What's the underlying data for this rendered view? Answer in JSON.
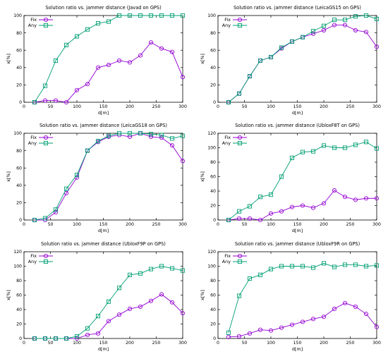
{
  "chart_data": [
    {
      "type": "line",
      "title": "Solution ratio vs. jammer distance (Javad on GPS)",
      "xlabel": "d[m]",
      "ylabel": "x[%]",
      "xlim": [
        0,
        300
      ],
      "ylim": [
        0,
        100
      ],
      "xticks": [
        0,
        50,
        100,
        150,
        200,
        250,
        300
      ],
      "yticks": [
        0,
        20,
        40,
        60,
        80,
        100
      ],
      "grid": false,
      "legend": "top-left",
      "x": [
        20,
        40,
        60,
        80,
        100,
        120,
        140,
        160,
        180,
        200,
        220,
        240,
        260,
        280,
        300
      ],
      "series": [
        {
          "name": "Fix",
          "color": "#9400d3",
          "marker": "circle",
          "values": [
            0,
            2,
            2,
            0,
            14,
            21,
            40,
            43,
            48,
            46,
            54,
            69,
            62,
            58,
            29
          ]
        },
        {
          "name": "Any",
          "color": "#009e73",
          "marker": "square",
          "values": [
            0,
            19,
            48,
            66,
            76,
            84,
            91,
            93,
            100,
            100,
            100,
            100,
            100,
            100,
            100
          ]
        }
      ]
    },
    {
      "type": "line",
      "title": "Solution ratio vs. jammer distance (LeicaGS15 on GPS)",
      "xlabel": "d[m]",
      "ylabel": "x[%]",
      "xlim": [
        0,
        300
      ],
      "ylim": [
        0,
        100
      ],
      "xticks": [
        0,
        50,
        100,
        150,
        200,
        250,
        300
      ],
      "yticks": [
        0,
        20,
        40,
        60,
        80,
        100
      ],
      "grid": false,
      "legend": "top-left",
      "x": [
        20,
        40,
        60,
        80,
        100,
        120,
        140,
        160,
        180,
        200,
        220,
        240,
        260,
        280,
        300
      ],
      "series": [
        {
          "name": "Fix",
          "color": "#9400d3",
          "marker": "circle",
          "values": [
            0,
            10,
            30,
            48,
            52,
            62,
            70,
            75,
            79,
            83,
            89,
            89,
            83,
            81,
            64
          ]
        },
        {
          "name": "Any",
          "color": "#009e73",
          "marker": "square",
          "values": [
            0,
            10,
            30,
            48,
            52,
            63,
            70,
            75,
            82,
            88,
            95,
            95,
            99,
            100,
            96
          ]
        }
      ]
    },
    {
      "type": "line",
      "title": "Solution ratio vs. jammer distance (LeicaGS18 on GPS)",
      "xlabel": "d[m]",
      "ylabel": "x[%]",
      "xlim": [
        0,
        300
      ],
      "ylim": [
        0,
        100
      ],
      "xticks": [
        0,
        50,
        100,
        150,
        200,
        250,
        300
      ],
      "yticks": [
        0,
        20,
        40,
        60,
        80,
        100
      ],
      "grid": false,
      "legend": "top-left",
      "x": [
        20,
        40,
        60,
        80,
        100,
        120,
        140,
        160,
        180,
        200,
        220,
        240,
        260,
        280,
        300
      ],
      "series": [
        {
          "name": "Fix",
          "color": "#9400d3",
          "marker": "circle",
          "values": [
            0,
            0,
            9,
            31,
            49,
            80,
            90,
            96,
            98,
            96,
            100,
            96,
            95,
            86,
            68
          ]
        },
        {
          "name": "Any",
          "color": "#009e73",
          "marker": "square",
          "values": [
            0,
            2,
            12,
            36,
            52,
            80,
            91,
            97,
            100,
            100,
            100,
            99,
            98,
            94,
            97
          ]
        }
      ]
    },
    {
      "type": "line",
      "title": "Solution ratio vs. jammer distance (UbloxF8T on GPS)",
      "xlabel": "d[m]",
      "ylabel": "x[%]",
      "xlim": [
        0,
        300
      ],
      "ylim": [
        0,
        120
      ],
      "xticks": [
        0,
        50,
        100,
        150,
        200,
        250,
        300
      ],
      "yticks": [
        0,
        20,
        40,
        60,
        80,
        100,
        120
      ],
      "grid": false,
      "legend": "top-left",
      "x": [
        20,
        40,
        60,
        80,
        100,
        120,
        140,
        160,
        180,
        200,
        220,
        240,
        260,
        280,
        300
      ],
      "series": [
        {
          "name": "Fix",
          "color": "#9400d3",
          "marker": "circle",
          "values": [
            0,
            2,
            2,
            0,
            9,
            12,
            18,
            20,
            17,
            23,
            41,
            32,
            28,
            30,
            30
          ]
        },
        {
          "name": "Any",
          "color": "#009e73",
          "marker": "square",
          "values": [
            0,
            12,
            19,
            32,
            35,
            60,
            86,
            94,
            95,
            103,
            100,
            100,
            104,
            108,
            99
          ]
        }
      ]
    },
    {
      "type": "line",
      "title": "Solution ratio vs. jammer distance (UbloxF9P on GPS)",
      "xlabel": "d[m]",
      "ylabel": "x[%]",
      "xlim": [
        0,
        300
      ],
      "ylim": [
        0,
        120
      ],
      "xticks": [
        0,
        50,
        100,
        150,
        200,
        250,
        300
      ],
      "yticks": [
        0,
        20,
        40,
        60,
        80,
        100,
        120
      ],
      "grid": false,
      "legend": "top-left",
      "x": [
        20,
        40,
        60,
        80,
        100,
        120,
        140,
        160,
        180,
        200,
        220,
        240,
        260,
        280,
        300
      ],
      "series": [
        {
          "name": "Fix",
          "color": "#9400d3",
          "marker": "circle",
          "values": [
            0,
            0,
            0,
            0,
            0,
            5,
            7,
            24,
            33,
            41,
            44,
            52,
            61,
            50,
            35
          ]
        },
        {
          "name": "Any",
          "color": "#009e73",
          "marker": "square",
          "values": [
            0,
            0,
            0,
            0,
            3,
            14,
            31,
            51,
            70,
            88,
            90,
            96,
            100,
            97,
            94
          ]
        }
      ]
    },
    {
      "type": "line",
      "title": "Solution ratio vs. jammer distance (UbloxF9R on GPS)",
      "xlabel": "d[m]",
      "ylabel": "x[%]",
      "xlim": [
        0,
        300
      ],
      "ylim": [
        0,
        120
      ],
      "xticks": [
        0,
        50,
        100,
        150,
        200,
        250,
        300
      ],
      "yticks": [
        0,
        20,
        40,
        60,
        80,
        100,
        120
      ],
      "grid": false,
      "legend": "top-left",
      "x": [
        20,
        40,
        60,
        80,
        100,
        120,
        140,
        160,
        180,
        200,
        220,
        240,
        260,
        280,
        300
      ],
      "series": [
        {
          "name": "Fix",
          "color": "#9400d3",
          "marker": "circle",
          "values": [
            2,
            3,
            7,
            12,
            11,
            15,
            19,
            23,
            27,
            30,
            41,
            49,
            44,
            34,
            16
          ]
        },
        {
          "name": "Any",
          "color": "#009e73",
          "marker": "square",
          "values": [
            8,
            59,
            83,
            88,
            96,
            100,
            100,
            100,
            98,
            104,
            99,
            102,
            102,
            100,
            101
          ]
        }
      ]
    }
  ]
}
